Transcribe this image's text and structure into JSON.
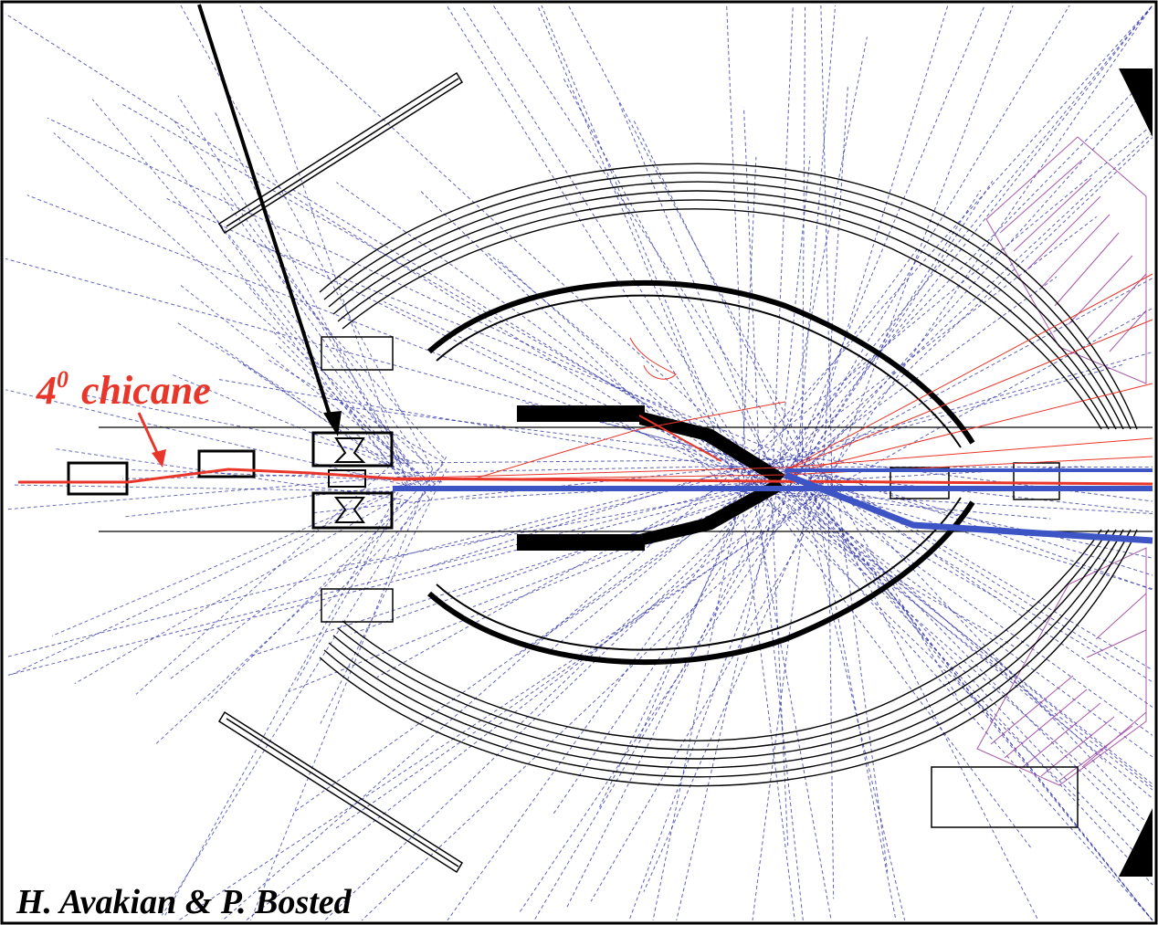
{
  "annotation": {
    "chicane_number": "4",
    "chicane_superscript": "0",
    "chicane_word": "chicane"
  },
  "credit": "H. Avakian & P. Bosted",
  "colors": {
    "beam": "#e8362a",
    "tracks": "#2b2fa3",
    "detector": "#000000",
    "hatched_region": "#9a3a9a",
    "label": "#e8362a"
  }
}
